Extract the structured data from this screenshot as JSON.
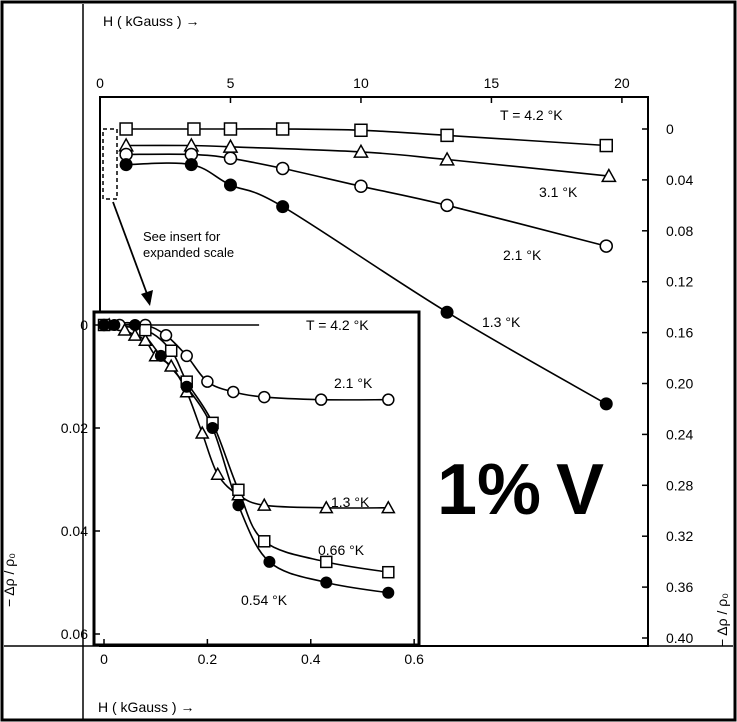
{
  "figure_label": "1% V",
  "figure_label_number": "1%",
  "figure_label_letter": "V",
  "note_lines": [
    "See insert for",
    "expanded scale"
  ],
  "chart_data": [
    {
      "type": "line",
      "panel": "main",
      "xlabel": "H ( kGauss ) →",
      "ylabel": "− Δρ / ρ₀",
      "xlim": [
        0,
        21
      ],
      "ylim": [
        0,
        0.4
      ],
      "y_inverted": true,
      "x_ticks": [
        "0",
        "5",
        "10",
        "15",
        "20"
      ],
      "x_tick_values": [
        0,
        5,
        10,
        15,
        20
      ],
      "y_ticks": [
        "0",
        "0.04",
        "0.08",
        "0.12",
        "0.16",
        "0.20",
        "0.24",
        "0.28",
        "0.32",
        "0.36",
        "0.40"
      ],
      "y_tick_values": [
        0,
        0.04,
        0.08,
        0.12,
        0.16,
        0.2,
        0.24,
        0.28,
        0.32,
        0.36,
        0.4
      ],
      "series": [
        {
          "name": "T = 4.2 °K",
          "marker": "square",
          "x": [
            1.0,
            3.6,
            5.0,
            7.0,
            10.0,
            13.3,
            19.4
          ],
          "y": [
            0.0,
            0.0,
            0.0,
            0.0,
            0.001,
            0.005,
            0.013
          ]
        },
        {
          "name": "3.1 °K",
          "marker": "triangle",
          "x": [
            1.0,
            3.5,
            5.0,
            10.0,
            13.3,
            19.5
          ],
          "y": [
            0.013,
            0.013,
            0.014,
            0.018,
            0.024,
            0.037
          ]
        },
        {
          "name": "2.1 °K",
          "marker": "circle",
          "x": [
            1.0,
            3.5,
            5.0,
            7.0,
            10.0,
            13.3,
            19.4
          ],
          "y": [
            0.02,
            0.02,
            0.023,
            0.031,
            0.045,
            0.06,
            0.092
          ]
        },
        {
          "name": "1.3 °K",
          "marker": "filled-circle",
          "x": [
            1.0,
            3.5,
            5.0,
            7.0,
            13.3,
            19.4
          ],
          "y": [
            0.028,
            0.028,
            0.044,
            0.061,
            0.144,
            0.216
          ]
        }
      ]
    },
    {
      "type": "line",
      "panel": "insert",
      "xlabel": "H ( kGauss ) →",
      "ylabel": "− Δρ / ρ₀",
      "xlim": [
        0,
        0.65
      ],
      "ylim": [
        0,
        0.06
      ],
      "y_inverted": true,
      "x_ticks": [
        "0",
        "0.2",
        "0.4",
        "0.6"
      ],
      "x_tick_values": [
        0,
        0.2,
        0.4,
        0.6
      ],
      "y_ticks": [
        "0",
        "0.02",
        "0.04",
        "0.06"
      ],
      "y_tick_values": [
        0,
        0.02,
        0.04,
        0.06
      ],
      "series": [
        {
          "name": "T = 4.2 °K",
          "marker": "none",
          "x": [
            0.0,
            0.3
          ],
          "y": [
            0.0,
            0.0
          ]
        },
        {
          "name": "2.1 °K",
          "marker": "circle",
          "x": [
            0.0,
            0.03,
            0.08,
            0.12,
            0.16,
            0.2,
            0.25,
            0.31,
            0.42,
            0.55
          ],
          "y": [
            0.0,
            0.0,
            0.0,
            0.002,
            0.006,
            0.011,
            0.013,
            0.014,
            0.0145,
            0.0145
          ]
        },
        {
          "name": "1.3 °K",
          "marker": "triangle",
          "x": [
            0.01,
            0.04,
            0.06,
            0.08,
            0.1,
            0.13,
            0.16,
            0.19,
            0.22,
            0.26,
            0.31,
            0.43,
            0.55
          ],
          "y": [
            0.0,
            0.001,
            0.002,
            0.003,
            0.006,
            0.008,
            0.013,
            0.021,
            0.029,
            0.033,
            0.035,
            0.0355,
            0.0355
          ]
        },
        {
          "name": "0.66 °K",
          "marker": "square",
          "x": [
            0.0,
            0.08,
            0.13,
            0.16,
            0.21,
            0.26,
            0.31,
            0.43,
            0.55
          ],
          "y": [
            0.0,
            0.001,
            0.005,
            0.011,
            0.019,
            0.032,
            0.042,
            0.046,
            0.048
          ]
        },
        {
          "name": "0.54 °K",
          "marker": "filled-circle",
          "x": [
            0.0,
            0.02,
            0.06,
            0.11,
            0.16,
            0.21,
            0.26,
            0.32,
            0.43,
            0.55
          ],
          "y": [
            0.0,
            0.0,
            0.0,
            0.006,
            0.012,
            0.02,
            0.035,
            0.046,
            0.05,
            0.052
          ]
        }
      ]
    }
  ]
}
